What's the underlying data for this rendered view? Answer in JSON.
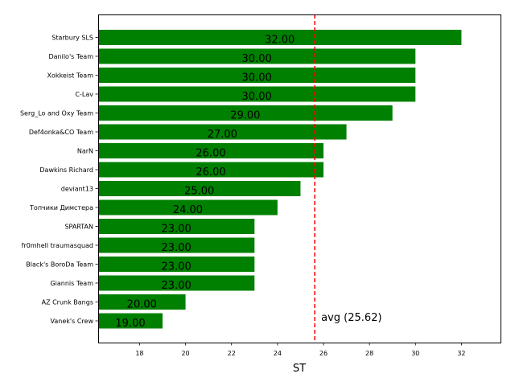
{
  "chart_data": {
    "type": "bar",
    "orientation": "horizontal",
    "xlabel": "ST",
    "xlim": [
      16.2,
      33.7
    ],
    "xticks": [
      18,
      20,
      22,
      24,
      26,
      28,
      30,
      32
    ],
    "bar_color": "#008000",
    "avg_line_color": "#ff0000",
    "avg_value": 25.62,
    "avg_label": "avg (25.62)",
    "categories": [
      "Starbury SLS",
      "Danilo's Team",
      "Xokkeist Team",
      "C-Lav",
      "Serg_Lo and Oxy Team",
      "Def4onka&CO Team",
      "NarN",
      "Dawkins Richard",
      "deviant13",
      "Топчики Димстера",
      "SPARTAN",
      "fr0mhell traumasquad",
      "Black's BoroDa Team",
      "Giannis Team",
      "AZ Crunk Bangs",
      "Vanek's Crew"
    ],
    "values": [
      32,
      30,
      30,
      30,
      29,
      27,
      26,
      26,
      25,
      24,
      23,
      23,
      23,
      23,
      20,
      19
    ],
    "value_labels": [
      "32.00",
      "30.00",
      "30.00",
      "30.00",
      "29.00",
      "27.00",
      "26.00",
      "26.00",
      "25.00",
      "24.00",
      "23.00",
      "23.00",
      "23.00",
      "23.00",
      "20.00",
      "19.00"
    ]
  }
}
